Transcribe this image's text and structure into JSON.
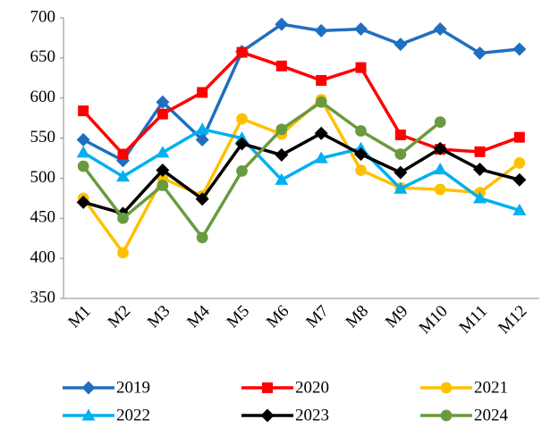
{
  "chart_data": {
    "type": "line",
    "categories": [
      "M1",
      "M2",
      "M3",
      "M4",
      "M5",
      "M6",
      "M7",
      "M8",
      "M9",
      "M10",
      "M11",
      "M12"
    ],
    "series": [
      {
        "name": "2019",
        "color": "#1f6fc0",
        "marker": "diamond",
        "values": [
          548,
          522,
          595,
          548,
          658,
          692,
          684,
          686,
          667,
          686,
          656,
          661
        ]
      },
      {
        "name": "2020",
        "color": "#ff0000",
        "marker": "square",
        "values": [
          584,
          530,
          580,
          607,
          657,
          640,
          622,
          638,
          554,
          536,
          533,
          551
        ]
      },
      {
        "name": "2021",
        "color": "#ffc000",
        "marker": "circle",
        "values": [
          475,
          407,
          500,
          478,
          574,
          555,
          598,
          510,
          488,
          486,
          482,
          519
        ]
      },
      {
        "name": "2022",
        "color": "#00b0f0",
        "marker": "triangle",
        "values": [
          532,
          502,
          532,
          561,
          550,
          498,
          525,
          537,
          487,
          511,
          475,
          460
        ]
      },
      {
        "name": "2023",
        "color": "#000000",
        "marker": "diamond",
        "values": [
          470,
          456,
          510,
          474,
          543,
          529,
          556,
          530,
          507,
          537,
          511,
          498
        ]
      },
      {
        "name": "2024",
        "color": "#6a9a3f",
        "marker": "circle",
        "values": [
          515,
          450,
          491,
          426,
          509,
          561,
          595,
          559,
          530,
          570,
          null,
          null
        ]
      }
    ],
    "ylim": [
      350,
      700
    ],
    "yticks": [
      350,
      400,
      450,
      500,
      550,
      600,
      650,
      700
    ],
    "grid": false
  }
}
